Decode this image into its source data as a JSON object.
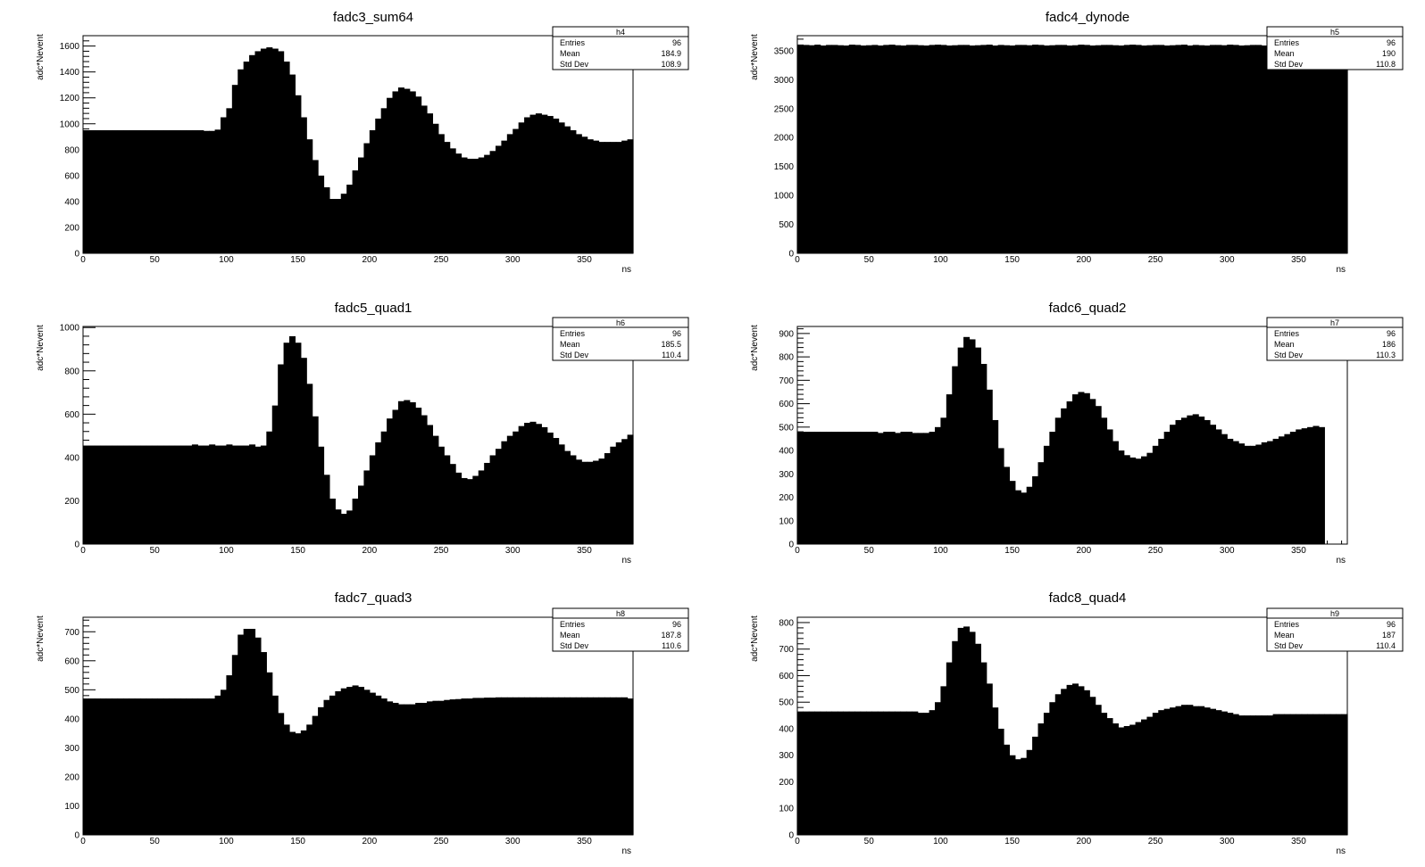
{
  "chart_data": [
    {
      "type": "bar",
      "title": "fadc3_sum64",
      "xlabel": "ns",
      "ylabel": "adc*Nevent",
      "xlim": [
        0,
        384
      ],
      "ylim": [
        0,
        1680
      ],
      "bin_width": 4,
      "x_ticks": [
        0,
        50,
        100,
        150,
        200,
        250,
        300,
        350
      ],
      "y_ticks": [
        0,
        200,
        400,
        600,
        800,
        1000,
        1200,
        1400,
        1600
      ],
      "stats": {
        "name": "h4",
        "rows": [
          [
            "Entries",
            "96"
          ],
          [
            "Mean",
            "184.9"
          ],
          [
            "Std Dev",
            "108.9"
          ]
        ]
      },
      "values": [
        950,
        950,
        950,
        950,
        950,
        950,
        950,
        950,
        950,
        950,
        950,
        950,
        950,
        950,
        950,
        950,
        950,
        950,
        950,
        950,
        950,
        945,
        945,
        955,
        1050,
        1120,
        1300,
        1420,
        1480,
        1530,
        1560,
        1580,
        1590,
        1580,
        1560,
        1480,
        1380,
        1220,
        1050,
        880,
        720,
        600,
        510,
        420,
        420,
        460,
        530,
        640,
        740,
        850,
        950,
        1040,
        1120,
        1200,
        1250,
        1280,
        1270,
        1250,
        1210,
        1140,
        1080,
        1000,
        920,
        860,
        810,
        770,
        740,
        730,
        730,
        740,
        760,
        790,
        830,
        870,
        920,
        960,
        1010,
        1050,
        1070,
        1080,
        1070,
        1060,
        1040,
        1010,
        980,
        950,
        920,
        900,
        880,
        870,
        860,
        860,
        860,
        860,
        870,
        880
      ]
    },
    {
      "type": "bar",
      "title": "fadc4_dynode",
      "xlabel": "ns",
      "ylabel": "adc*Nevent",
      "xlim": [
        0,
        384
      ],
      "ylim": [
        0,
        3760
      ],
      "bin_width": 4,
      "x_ticks": [
        0,
        50,
        100,
        150,
        200,
        250,
        300,
        350
      ],
      "y_ticks": [
        0,
        500,
        1000,
        1500,
        2000,
        2500,
        3000,
        3500
      ],
      "stats": {
        "name": "h5",
        "rows": [
          [
            "Entries",
            "96"
          ],
          [
            "Mean",
            "190"
          ],
          [
            "Std Dev",
            "110.8"
          ]
        ]
      },
      "values": [
        3590,
        3600,
        3595,
        3605,
        3590,
        3600,
        3600,
        3595,
        3590,
        3605,
        3600,
        3590,
        3595,
        3600,
        3590,
        3600,
        3605,
        3595,
        3590,
        3600,
        3600,
        3595,
        3590,
        3600,
        3605,
        3600,
        3590,
        3595,
        3600,
        3600,
        3590,
        3595,
        3600,
        3605,
        3590,
        3600,
        3595,
        3590,
        3600,
        3600,
        3595,
        3605,
        3600,
        3590,
        3595,
        3600,
        3600,
        3590,
        3595,
        3605,
        3600,
        3590,
        3595,
        3600,
        3600,
        3595,
        3590,
        3600,
        3605,
        3600,
        3590,
        3595,
        3600,
        3600,
        3590,
        3595,
        3600,
        3605,
        3590,
        3600,
        3595,
        3590,
        3600,
        3600,
        3595,
        3605,
        3600,
        3590,
        3595,
        3600,
        3600,
        3590,
        3595,
        3605,
        3600,
        3590,
        3595,
        3600,
        3600,
        3595,
        3590,
        3600,
        3605,
        3600,
        3590,
        3595
      ]
    },
    {
      "type": "bar",
      "title": "fadc5_quad1",
      "xlabel": "ns",
      "ylabel": "adc*Nevent",
      "xlim": [
        0,
        384
      ],
      "ylim": [
        0,
        1005
      ],
      "bin_width": 4,
      "x_ticks": [
        0,
        50,
        100,
        150,
        200,
        250,
        300,
        350
      ],
      "y_ticks": [
        0,
        200,
        400,
        600,
        800,
        1000
      ],
      "stats": {
        "name": "h6",
        "rows": [
          [
            "Entries",
            "96"
          ],
          [
            "Mean",
            "185.5"
          ],
          [
            "Std Dev",
            "110.4"
          ]
        ]
      },
      "values": [
        455,
        455,
        455,
        455,
        455,
        455,
        455,
        455,
        455,
        455,
        455,
        455,
        455,
        455,
        455,
        455,
        455,
        455,
        455,
        460,
        455,
        455,
        460,
        455,
        455,
        460,
        455,
        455,
        455,
        460,
        450,
        455,
        520,
        640,
        830,
        930,
        960,
        930,
        860,
        740,
        590,
        450,
        320,
        210,
        160,
        140,
        155,
        210,
        270,
        340,
        410,
        470,
        520,
        580,
        620,
        660,
        665,
        655,
        630,
        595,
        550,
        500,
        450,
        410,
        370,
        330,
        305,
        300,
        315,
        340,
        375,
        410,
        440,
        475,
        500,
        520,
        545,
        560,
        565,
        555,
        540,
        515,
        490,
        460,
        430,
        410,
        390,
        380,
        380,
        385,
        395,
        420,
        450,
        470,
        485,
        505
      ]
    },
    {
      "type": "bar",
      "title": "fadc6_quad2",
      "xlabel": "ns",
      "ylabel": "adc*Nevent",
      "xlim": [
        0,
        384
      ],
      "ylim": [
        0,
        930
      ],
      "bin_width": 4,
      "x_ticks": [
        0,
        50,
        100,
        150,
        200,
        250,
        300,
        350
      ],
      "y_ticks": [
        0,
        100,
        200,
        300,
        400,
        500,
        600,
        700,
        800,
        900
      ],
      "stats": {
        "name": "h7",
        "rows": [
          [
            "Entries",
            "96"
          ],
          [
            "Mean",
            "186"
          ],
          [
            "Std Dev",
            "110.3"
          ]
        ]
      },
      "values": [
        480,
        480,
        480,
        480,
        480,
        480,
        480,
        480,
        480,
        480,
        480,
        480,
        480,
        480,
        475,
        480,
        480,
        475,
        480,
        480,
        475,
        475,
        475,
        480,
        500,
        540,
        640,
        760,
        840,
        885,
        875,
        840,
        770,
        660,
        530,
        410,
        330,
        270,
        230,
        220,
        245,
        290,
        350,
        420,
        480,
        540,
        580,
        610,
        640,
        650,
        645,
        620,
        590,
        540,
        490,
        440,
        400,
        380,
        370,
        365,
        375,
        390,
        420,
        450,
        480,
        510,
        530,
        540,
        550,
        555,
        545,
        530,
        510,
        490,
        470,
        450,
        440,
        430,
        420,
        420,
        425,
        435,
        440,
        450,
        460,
        470,
        480,
        490,
        495,
        500,
        505,
        500
      ]
    },
    {
      "type": "bar",
      "title": "fadc7_quad3",
      "xlabel": "ns",
      "ylabel": "adc*Nevent",
      "xlim": [
        0,
        384
      ],
      "ylim": [
        0,
        750
      ],
      "bin_width": 4,
      "x_ticks": [
        0,
        50,
        100,
        150,
        200,
        250,
        300,
        350
      ],
      "y_ticks": [
        0,
        100,
        200,
        300,
        400,
        500,
        600,
        700
      ],
      "stats": {
        "name": "h8",
        "rows": [
          [
            "Entries",
            "96"
          ],
          [
            "Mean",
            "187.8"
          ],
          [
            "Std Dev",
            "110.6"
          ]
        ]
      },
      "values": [
        470,
        470,
        470,
        470,
        470,
        470,
        470,
        470,
        470,
        470,
        470,
        470,
        470,
        470,
        470,
        470,
        470,
        470,
        470,
        470,
        470,
        470,
        470,
        480,
        500,
        550,
        620,
        690,
        710,
        710,
        680,
        630,
        560,
        480,
        420,
        380,
        355,
        350,
        360,
        380,
        410,
        440,
        465,
        480,
        495,
        505,
        510,
        515,
        510,
        500,
        490,
        480,
        470,
        460,
        455,
        450,
        450,
        450,
        455,
        455,
        460,
        462,
        462,
        465,
        467,
        468,
        470,
        470,
        472,
        472,
        473,
        473,
        474,
        474,
        474,
        474,
        474,
        474,
        474,
        474,
        474,
        474,
        474,
        474,
        474,
        474,
        474,
        474,
        474,
        474,
        474,
        474,
        474,
        474,
        474,
        470
      ]
    },
    {
      "type": "bar",
      "title": "fadc8_quad4",
      "xlabel": "ns",
      "ylabel": "adc*Nevent",
      "xlim": [
        0,
        384
      ],
      "ylim": [
        0,
        820
      ],
      "bin_width": 4,
      "x_ticks": [
        0,
        50,
        100,
        150,
        200,
        250,
        300,
        350
      ],
      "y_ticks": [
        0,
        100,
        200,
        300,
        400,
        500,
        600,
        700,
        800
      ],
      "stats": {
        "name": "h9",
        "rows": [
          [
            "Entries",
            "96"
          ],
          [
            "Mean",
            "187"
          ],
          [
            "Std Dev",
            "110.4"
          ]
        ]
      },
      "values": [
        465,
        465,
        465,
        465,
        465,
        465,
        465,
        465,
        465,
        465,
        465,
        465,
        465,
        465,
        465,
        465,
        465,
        465,
        465,
        465,
        465,
        460,
        460,
        470,
        500,
        560,
        650,
        730,
        780,
        785,
        765,
        720,
        650,
        570,
        480,
        400,
        340,
        300,
        285,
        290,
        320,
        370,
        420,
        460,
        500,
        530,
        550,
        565,
        570,
        560,
        545,
        520,
        490,
        460,
        440,
        420,
        405,
        410,
        415,
        425,
        435,
        445,
        460,
        470,
        475,
        480,
        485,
        490,
        490,
        485,
        485,
        480,
        475,
        470,
        465,
        460,
        455,
        450,
        450,
        450,
        450,
        450,
        450,
        455,
        455,
        455,
        455,
        455,
        455,
        455,
        455,
        455,
        455,
        455,
        455,
        455
      ]
    }
  ]
}
